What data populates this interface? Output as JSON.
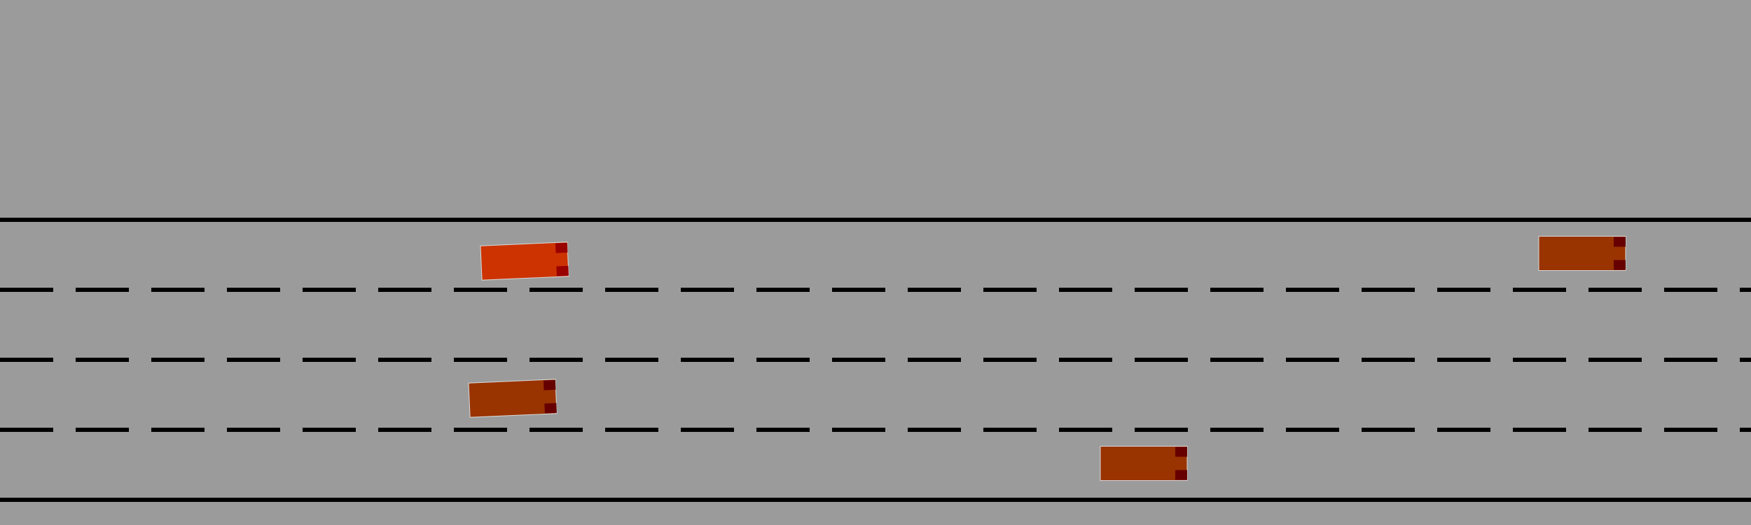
{
  "road": {
    "lane_count": 4,
    "colors": {
      "background": "#9b9b9b",
      "line": "#000000"
    }
  },
  "vehicles": [
    {
      "name": "ego-vehicle",
      "lane": 1,
      "heading_deg": -2.5,
      "color": "#cc3300",
      "light_color": "#990000",
      "role": "ego"
    },
    {
      "name": "vehicle-2",
      "lane": 1,
      "heading_deg": 0,
      "color": "#993300",
      "light_color": "#660000",
      "role": "other"
    },
    {
      "name": "vehicle-3",
      "lane": 3,
      "heading_deg": -2.5,
      "color": "#993300",
      "light_color": "#660000",
      "role": "other"
    },
    {
      "name": "vehicle-4",
      "lane": 4,
      "heading_deg": 0,
      "color": "#993300",
      "light_color": "#660000",
      "role": "other"
    }
  ]
}
